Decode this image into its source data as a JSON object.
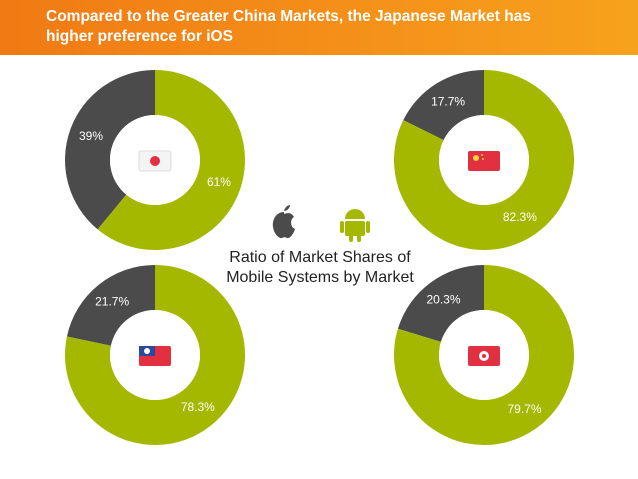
{
  "header": {
    "title": "Compared to the Greater China Markets, the Japanese Market has higher preference for iOS"
  },
  "caption": "Ratio of Market Shares of Mobile Systems by Market",
  "chart_data": [
    {
      "type": "donut",
      "values": [
        39,
        61
      ],
      "value_labels": [
        "39%",
        "61%"
      ],
      "colors": [
        "#4b4b4b",
        "#a5b800"
      ]
    },
    {
      "type": "donut",
      "values": [
        17.7,
        82.3
      ],
      "value_labels": [
        "17.7%",
        "82.3%"
      ],
      "colors": [
        "#4b4b4b",
        "#a5b800"
      ]
    },
    {
      "type": "donut",
      "values": [
        21.7,
        78.3
      ],
      "value_labels": [
        "21.7%",
        "78.3%"
      ],
      "colors": [
        "#4b4b4b",
        "#a5b800"
      ]
    },
    {
      "type": "donut",
      "values": [
        20.3,
        79.7
      ],
      "value_labels": [
        "20.3%",
        "79.7%"
      ],
      "colors": [
        "#4b4b4b",
        "#a5b800"
      ]
    }
  ]
}
